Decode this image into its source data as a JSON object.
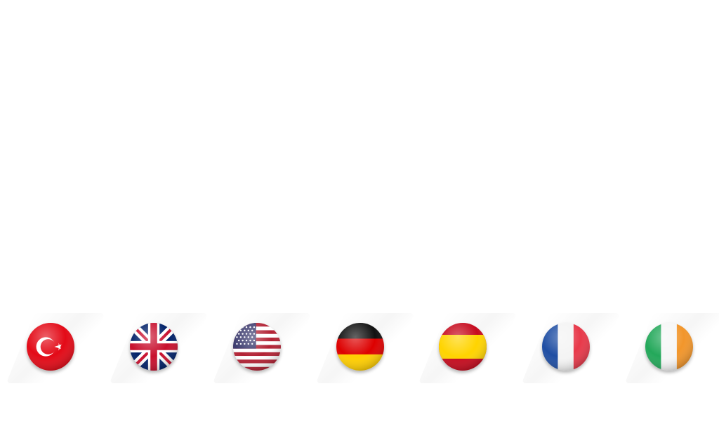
{
  "languages": [
    {
      "code": "tr",
      "flag_icon": "turkey-flag-icon",
      "colors": [
        "#e30a17",
        "#ffffff"
      ]
    },
    {
      "code": "gb",
      "flag_icon": "united-kingdom-flag-icon",
      "colors": [
        "#012169",
        "#ffffff",
        "#c8102e"
      ]
    },
    {
      "code": "us",
      "flag_icon": "united-states-flag-icon",
      "colors": [
        "#3c3b6e",
        "#ffffff",
        "#b22234"
      ]
    },
    {
      "code": "de",
      "flag_icon": "germany-flag-icon",
      "colors": [
        "#000000",
        "#dd0000",
        "#ffce00"
      ]
    },
    {
      "code": "es",
      "flag_icon": "spain-flag-icon",
      "colors": [
        "#c60b1e",
        "#ffc400"
      ]
    },
    {
      "code": "fr",
      "flag_icon": "france-flag-icon",
      "colors": [
        "#0055a4",
        "#ffffff",
        "#ef4135"
      ]
    },
    {
      "code": "ie",
      "flag_icon": "ireland-flag-icon",
      "colors": [
        "#169b62",
        "#ffffff",
        "#ff883e"
      ]
    }
  ]
}
